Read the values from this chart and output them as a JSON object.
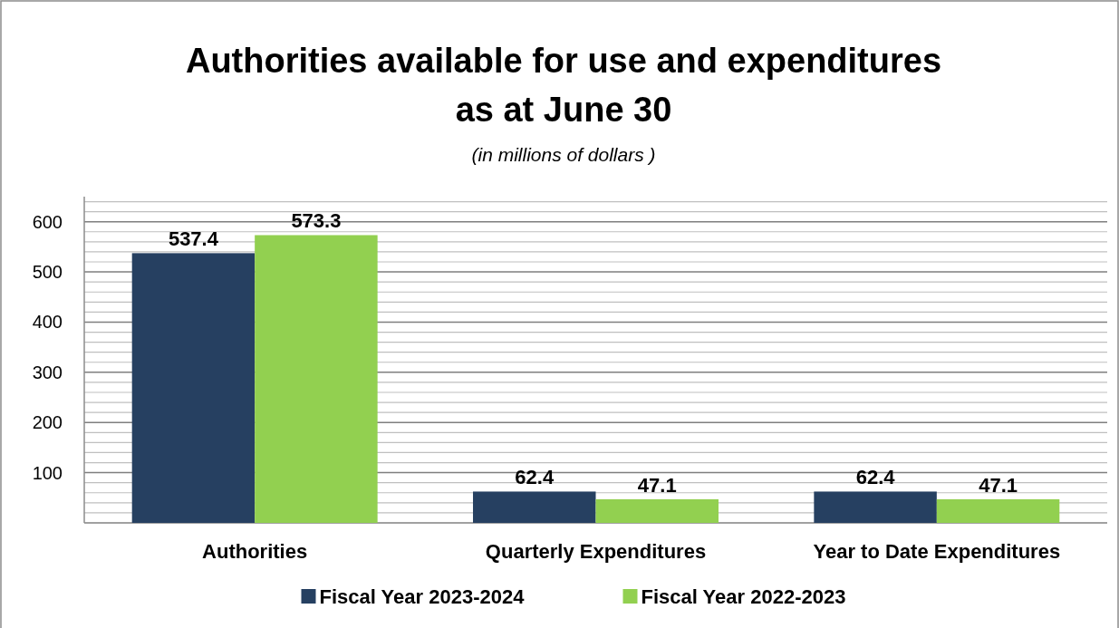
{
  "chart_data": {
    "type": "bar",
    "title": "Authorities available for use and expenditures\nas at June 30",
    "subtitle": "(in millions of dollars )",
    "categories": [
      "Authorities",
      "Quarterly Expenditures",
      "Year to Date Expenditures"
    ],
    "series": [
      {
        "name": "Fiscal Year 2023-2024",
        "color": "#264061",
        "values": [
          537.4,
          62.4,
          62.4
        ]
      },
      {
        "name": "Fiscal Year 2022-2023",
        "color": "#92d050",
        "values": [
          573.3,
          47.1,
          47.1
        ]
      }
    ],
    "ylim": [
      0,
      650
    ],
    "yticks": [
      {
        "value": 0,
        "label": null
      },
      {
        "value": 20,
        "label": null
      },
      {
        "value": 40,
        "label": null
      },
      {
        "value": 60,
        "label": null
      },
      {
        "value": 80,
        "label": null
      },
      100,
      {
        "value": 120,
        "label": null
      },
      {
        "value": 140,
        "label": null
      },
      {
        "value": 160,
        "label": null
      },
      {
        "value": 180,
        "label": null
      },
      200,
      {
        "value": 220,
        "label": null
      },
      {
        "value": 240,
        "label": null
      },
      {
        "value": 260,
        "label": null
      },
      {
        "value": 280,
        "label": null
      },
      300,
      {
        "value": 320,
        "label": null
      },
      {
        "value": 340,
        "label": null
      },
      {
        "value": 360,
        "label": null
      },
      {
        "value": 380,
        "label": null
      },
      400,
      {
        "value": 420,
        "label": null
      },
      {
        "value": 440,
        "label": null
      },
      {
        "value": 460,
        "label": null
      },
      {
        "value": 480,
        "label": null
      },
      500,
      {
        "value": 520,
        "label": null
      },
      {
        "value": 540,
        "label": null
      },
      {
        "value": 560,
        "label": null
      },
      {
        "value": 580,
        "label": null
      },
      600,
      {
        "value": 620,
        "label": null
      },
      {
        "value": 640,
        "label": null
      }
    ],
    "grid": "y",
    "legend": "bottom",
    "data_labels": true
  }
}
